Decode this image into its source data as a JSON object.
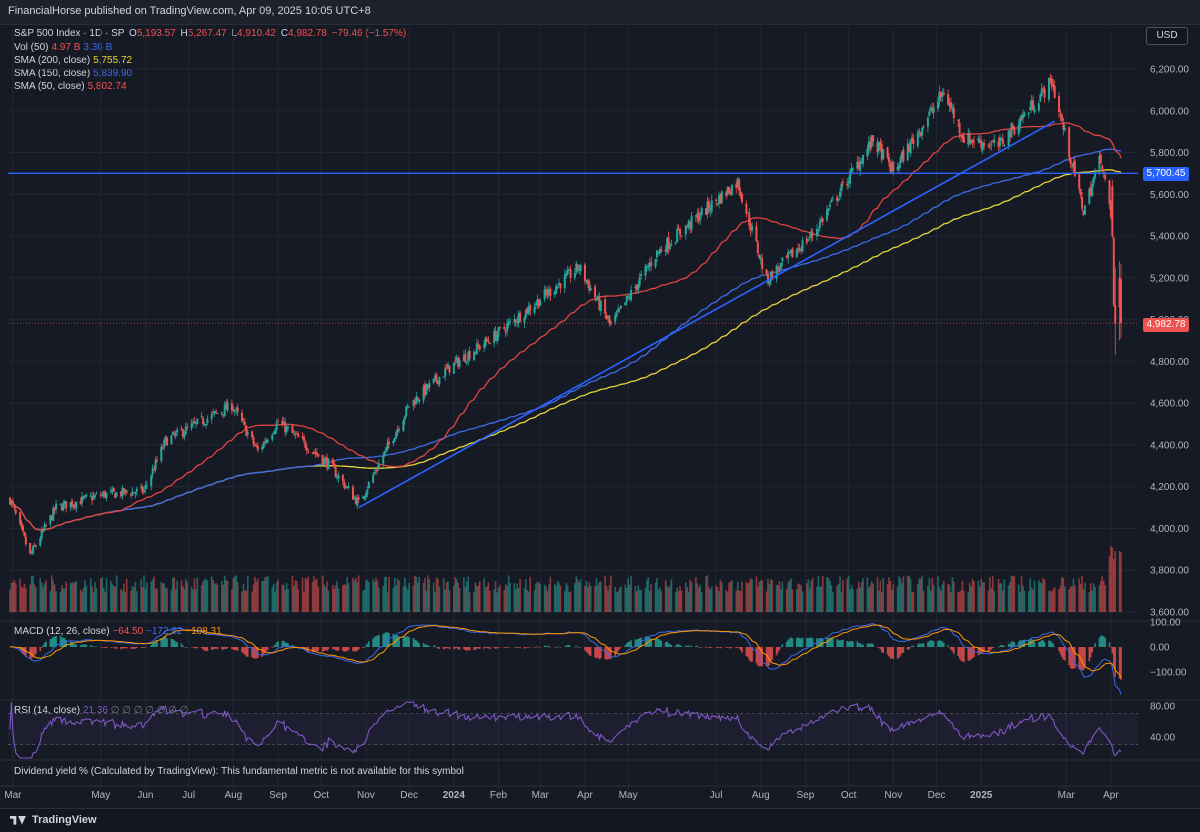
{
  "header": {
    "publisher_line": "FinancialHorse published on TradingView.com, Apr 09, 2025 10:05 UTC+8"
  },
  "legend": {
    "symbol": "S&P 500 Index · 1D · SP",
    "ohlc": {
      "o_label": "O",
      "o": "5,193.57",
      "h_label": "H",
      "h": "5,267.47",
      "l_label": "L",
      "l": "4,910.42",
      "c_label": "C",
      "c": "4,982.78",
      "chg": "−79.46 (−1.57%)"
    },
    "vol": {
      "label": "Vol (50)",
      "v1": "4.97 B",
      "v2": "3.36 B"
    },
    "sma200": {
      "label": "SMA (200, close)",
      "value": "5,755.72"
    },
    "sma150": {
      "label": "SMA (150, close)",
      "value": "5,839.90"
    },
    "sma50": {
      "label": "SMA (50, close)",
      "value": "5,802.74"
    }
  },
  "currency": "USD",
  "colors": {
    "bg": "#161a25",
    "up": "#26a69a",
    "down": "#ef5350",
    "sma50": "#e0443f",
    "sma150": "#3d6ae8",
    "sma200": "#e6d539",
    "hline": "#2962ff",
    "rsi": "#7e57c2",
    "grid": "#222632",
    "axis_text": "#b2b5be"
  },
  "price_tags": {
    "hline": "5,700.45",
    "last": "4,982.78"
  },
  "macd": {
    "label": "MACD (12, 26, close)",
    "v1": "−64.50",
    "v2": "−172.82",
    "v3": "−108.31"
  },
  "rsi": {
    "label": "RSI (14, close)",
    "value": "21.36",
    "extra": "∅ ∅ ∅ ∅ ∅ ∅ ∅"
  },
  "dividend_note": "Dividend yield % (Calculated by TradingView): This fundamental metric is not available for this symbol",
  "footer": {
    "brand": "TradingView"
  },
  "chart_data": {
    "type": "candlestick",
    "y_ticks": [
      "6,200.00",
      "6,000.00",
      "5,800.00",
      "5,600.00",
      "5,400.00",
      "5,200.00",
      "5,000.00",
      "4,800.00",
      "4,600.00",
      "4,400.00",
      "4,200.00",
      "4,000.00",
      "3,800.00",
      "3,600.00"
    ],
    "ylim": [
      3600,
      6200
    ],
    "x_ticks": [
      "Mar",
      "May",
      "Jun",
      "Jul",
      "Aug",
      "Sep",
      "Oct",
      "Nov",
      "Dec",
      "2024",
      "Feb",
      "Mar",
      "Apr",
      "May",
      "Jul",
      "Aug",
      "Sep",
      "Oct",
      "Nov",
      "Dec",
      "2025",
      "Mar",
      "Apr"
    ],
    "price_path": [
      [
        "2023-02-27",
        4140
      ],
      [
        "2023-03-13",
        3870
      ],
      [
        "2023-03-31",
        4100
      ],
      [
        "2023-05-01",
        4160
      ],
      [
        "2023-05-31",
        4180
      ],
      [
        "2023-06-15",
        4420
      ],
      [
        "2023-07-31",
        4590
      ],
      [
        "2023-08-18",
        4370
      ],
      [
        "2023-09-01",
        4510
      ],
      [
        "2023-10-06",
        4310
      ],
      [
        "2023-10-27",
        4120
      ],
      [
        "2023-12-01",
        4590
      ],
      [
        "2023-12-29",
        4770
      ],
      [
        "2024-01-31",
        4930
      ],
      [
        "2024-03-28",
        5250
      ],
      [
        "2024-04-19",
        4970
      ],
      [
        "2024-05-21",
        5320
      ],
      [
        "2024-07-16",
        5660
      ],
      [
        "2024-08-05",
        5190
      ],
      [
        "2024-09-06",
        5410
      ],
      [
        "2024-10-18",
        5860
      ],
      [
        "2024-11-01",
        5710
      ],
      [
        "2024-12-06",
        6090
      ],
      [
        "2024-12-20",
        5870
      ],
      [
        "2025-01-13",
        5830
      ],
      [
        "2025-02-19",
        6140
      ],
      [
        "2025-03-13",
        5520
      ],
      [
        "2025-03-25",
        5780
      ],
      [
        "2025-04-03",
        5400
      ],
      [
        "2025-04-04",
        5070
      ],
      [
        "2025-04-08",
        4982.78
      ]
    ],
    "horizontal_line": 5700.45,
    "last_price": 4982.78,
    "volume_axis_ticks": [
      "",
      ""
    ],
    "macd_ticks": [
      "100.00",
      "0.00",
      "−100.00"
    ],
    "rsi_ticks": [
      "80.00",
      "40.00"
    ]
  }
}
